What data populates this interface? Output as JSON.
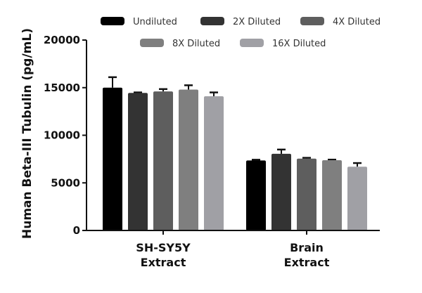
{
  "chart_data": {
    "type": "bar",
    "title": "",
    "xlabel": "",
    "ylabel": "Human Beta-III Tubulin (pg/mL)",
    "ylim": [
      0,
      20000
    ],
    "yticks": [
      0,
      5000,
      10000,
      15000,
      20000
    ],
    "ytick_labels": [
      "0",
      "5000",
      "10000",
      "15000",
      "20000"
    ],
    "grid": false,
    "legend_position": "top",
    "categories": [
      [
        "SH-SY5Y",
        "Extract"
      ],
      [
        "Brain",
        "Extract"
      ]
    ],
    "category_labels": [
      "SH-SY5Y Extract",
      "Brain Extract"
    ],
    "series": [
      {
        "name": "Undiluted",
        "color": "#000000",
        "values": [
          15000,
          7350
        ],
        "error": [
          1100,
          80
        ]
      },
      {
        "name": "2X Diluted",
        "color": "#333333",
        "values": [
          14450,
          8050
        ],
        "error": [
          50,
          450
        ]
      },
      {
        "name": "4X Diluted",
        "color": "#5e5e5e",
        "values": [
          14600,
          7550
        ],
        "error": [
          250,
          80
        ]
      },
      {
        "name": "8X Diluted",
        "color": "#7f7f7f",
        "values": [
          14800,
          7380
        ],
        "error": [
          450,
          60
        ]
      },
      {
        "name": "16X Diluted",
        "color": "#a0a0a5",
        "values": [
          14100,
          6700
        ],
        "error": [
          400,
          380
        ]
      }
    ]
  }
}
